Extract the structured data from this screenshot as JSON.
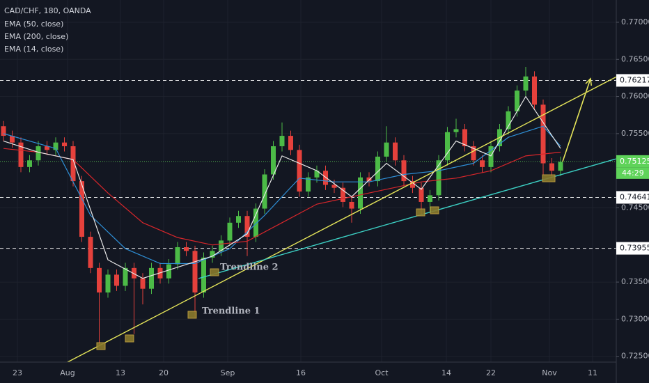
{
  "chart_data": {
    "type": "candlestick",
    "title": "CAD/CHF, 180, OANDA",
    "up_color": "#4cbb47",
    "down_color": "#e5413c",
    "xlim": [
      -0.4,
      70.4
    ],
    "ylim": [
      0.72422,
      0.773
    ],
    "grid": true,
    "yticks": [
      {
        "value": 0.77,
        "label": "0.77000"
      },
      {
        "value": 0.765,
        "label": "0.76500"
      },
      {
        "value": 0.76,
        "label": "0.76000"
      },
      {
        "value": 0.755,
        "label": "0.75500"
      },
      {
        "value": 0.745,
        "label": "0.74500"
      },
      {
        "value": 0.735,
        "label": "0.73500"
      },
      {
        "value": 0.73,
        "label": "0.73000"
      },
      {
        "value": 0.725,
        "label": "0.72500"
      }
    ],
    "xticks": [
      {
        "value": 1.6,
        "label": "23"
      },
      {
        "value": 7.36,
        "label": "Aug"
      },
      {
        "value": 13.44,
        "label": "13"
      },
      {
        "value": 18.4,
        "label": "20"
      },
      {
        "value": 25.76,
        "label": "Sep"
      },
      {
        "value": 34.16,
        "label": "16"
      },
      {
        "value": 43.44,
        "label": "Oct"
      },
      {
        "value": 50.88,
        "label": "14"
      },
      {
        "value": 56,
        "label": "22"
      },
      {
        "value": 62.72,
        "label": "Nov"
      },
      {
        "value": 67.68,
        "label": "11"
      }
    ],
    "open": [
      0.756,
      0.7547,
      0.7538,
      0.7505,
      0.7514,
      0.7533,
      0.7528,
      0.7538,
      0.7533,
      0.7486,
      0.7411,
      0.7369,
      0.7336,
      0.736,
      0.7345,
      0.7369,
      0.7355,
      0.7341,
      0.7369,
      0.7355,
      0.7374,
      0.7397,
      0.7392,
      0.7336,
      0.7383,
      0.7392,
      0.7406,
      0.743,
      0.7439,
      0.7411,
      0.7449,
      0.7495,
      0.7533,
      0.7547,
      0.7528,
      0.7472,
      0.7491,
      0.75,
      0.7481,
      0.7477,
      0.7458,
      0.7449,
      0.7491,
      0.7486,
      0.7519,
      0.7538,
      0.7514,
      0.7486,
      0.7477,
      0.7458,
      0.7467,
      0.7514,
      0.7552,
      0.7556,
      0.7533,
      0.7514,
      0.7505,
      0.7533,
      0.7556,
      0.758,
      0.7608,
      0.7627,
      0.7589,
      0.751,
      0.75
    ],
    "high": [
      0.7567,
      0.7554,
      0.7545,
      0.7521,
      0.754,
      0.754,
      0.7545,
      0.7545,
      0.754,
      0.7493,
      0.7418,
      0.7376,
      0.7367,
      0.7367,
      0.7376,
      0.7376,
      0.7362,
      0.7376,
      0.7376,
      0.7381,
      0.7404,
      0.7404,
      0.7399,
      0.739,
      0.7399,
      0.7413,
      0.7437,
      0.7446,
      0.7446,
      0.7456,
      0.7502,
      0.754,
      0.7565,
      0.7554,
      0.7535,
      0.7498,
      0.7507,
      0.7507,
      0.7488,
      0.7484,
      0.7465,
      0.7498,
      0.7498,
      0.7526,
      0.756,
      0.7545,
      0.7521,
      0.7493,
      0.7484,
      0.7474,
      0.7521,
      0.7559,
      0.757,
      0.7563,
      0.754,
      0.7521,
      0.754,
      0.7563,
      0.7587,
      0.7615,
      0.764,
      0.7634,
      0.7596,
      0.7517,
      0.7519
    ],
    "low": [
      0.754,
      0.7531,
      0.7498,
      0.7498,
      0.7507,
      0.7521,
      0.7521,
      0.7526,
      0.7479,
      0.7404,
      0.7362,
      0.7265,
      0.7329,
      0.7338,
      0.7338,
      0.728,
      0.732,
      0.7334,
      0.7348,
      0.7348,
      0.7367,
      0.7385,
      0.7302,
      0.7329,
      0.7376,
      0.7385,
      0.7399,
      0.7423,
      0.7385,
      0.7404,
      0.7442,
      0.7488,
      0.7526,
      0.7521,
      0.7465,
      0.7465,
      0.7484,
      0.7474,
      0.747,
      0.7451,
      0.743,
      0.7442,
      0.7479,
      0.7479,
      0.7512,
      0.7507,
      0.7479,
      0.747,
      0.744,
      0.7445,
      0.746,
      0.7507,
      0.7545,
      0.7526,
      0.7507,
      0.7498,
      0.7498,
      0.7526,
      0.7549,
      0.7573,
      0.7601,
      0.7582,
      0.7495,
      0.749,
      0.7493
    ],
    "close": [
      0.7547,
      0.7538,
      0.7505,
      0.7514,
      0.7533,
      0.7528,
      0.7538,
      0.7533,
      0.7486,
      0.7411,
      0.7369,
      0.7336,
      0.736,
      0.7345,
      0.7369,
      0.7355,
      0.7341,
      0.7369,
      0.7355,
      0.7374,
      0.7397,
      0.7392,
      0.7336,
      0.7383,
      0.7392,
      0.7406,
      0.743,
      0.7439,
      0.7411,
      0.7449,
      0.7495,
      0.7533,
      0.7547,
      0.7528,
      0.7472,
      0.7491,
      0.75,
      0.7481,
      0.7477,
      0.7458,
      0.7449,
      0.7491,
      0.7486,
      0.7519,
      0.7538,
      0.7514,
      0.7486,
      0.7477,
      0.7458,
      0.7467,
      0.7514,
      0.7552,
      0.7556,
      0.7533,
      0.7514,
      0.7505,
      0.7533,
      0.7556,
      0.758,
      0.7608,
      0.7627,
      0.7589,
      0.751,
      0.75,
      0.7512
    ],
    "series": [
      {
        "name": "EMA (50, close)",
        "color": "#2e8fd6",
        "x": [
          0,
          6,
          10,
          14,
          18,
          22,
          26,
          30,
          34,
          38,
          42,
          46,
          50,
          54,
          58,
          62,
          64
        ],
        "values": [
          0.755,
          0.753,
          0.744,
          0.7395,
          0.7375,
          0.7375,
          0.7395,
          0.744,
          0.749,
          0.7485,
          0.7485,
          0.7495,
          0.75,
          0.751,
          0.7545,
          0.756,
          0.7533
        ]
      },
      {
        "name": "EMA (200, close)",
        "color": "#d8262b",
        "x": [
          0,
          4,
          8,
          12,
          16,
          20,
          24,
          28,
          32,
          36,
          40,
          44,
          48,
          52,
          56,
          60,
          64
        ],
        "values": [
          0.753,
          0.7525,
          0.7515,
          0.747,
          0.743,
          0.741,
          0.74,
          0.7405,
          0.743,
          0.7455,
          0.7465,
          0.7475,
          0.7485,
          0.749,
          0.75,
          0.752,
          0.7525
        ]
      },
      {
        "name": "EMA (14, close)",
        "color": "#e8e8e8",
        "x": [
          0,
          4,
          8,
          12,
          16,
          20,
          24,
          28,
          32,
          36,
          40,
          44,
          48,
          52,
          56,
          60,
          64
        ],
        "values": [
          0.754,
          0.7525,
          0.7515,
          0.738,
          0.7355,
          0.737,
          0.7385,
          0.7415,
          0.752,
          0.75,
          0.7465,
          0.751,
          0.7475,
          0.754,
          0.752,
          0.76,
          0.753
        ]
      }
    ],
    "levels": [
      {
        "value": 0.76217,
        "color": "#ffffff",
        "style": "dashed"
      },
      {
        "value": 0.75125,
        "color": "#5fd35a",
        "style": "dotted"
      },
      {
        "value": 0.74641,
        "color": "#ffffff",
        "style": "dashed"
      },
      {
        "value": 0.73955,
        "color": "#ffffff",
        "style": "dashed"
      }
    ],
    "countdown": "44:29",
    "trendlines": [
      {
        "label": "Trendline 1",
        "color": "#e6e65a",
        "from": [
          7.36,
          0.72422
        ],
        "to": [
          70.4,
          0.76265
        ]
      },
      {
        "label": "Trendline 2",
        "color": "#3cd0c4",
        "from": [
          22.4,
          0.73548
        ],
        "to": [
          70.4,
          0.75161
        ]
      }
    ],
    "arrow": {
      "color": "#e6e65a",
      "from": [
        64.24,
        0.75124
      ],
      "to": [
        67.44,
        0.7624
      ]
    }
  }
}
